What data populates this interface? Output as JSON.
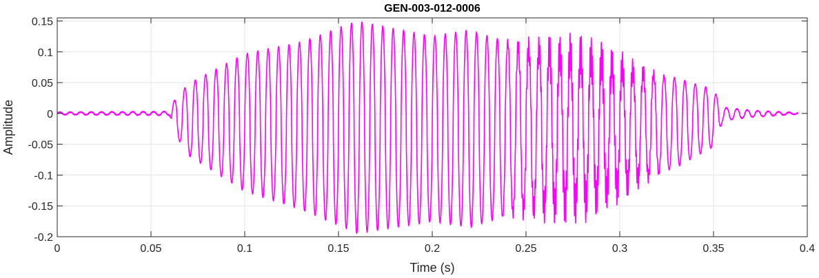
{
  "chart_data": {
    "type": "line",
    "title": "GEN-003-012-0006",
    "xlabel": "Time (s)",
    "ylabel": "Amplitude",
    "xlim": [
      0,
      0.4
    ],
    "ylim": [
      -0.2,
      0.155
    ],
    "xticks": [
      0,
      0.05,
      0.1,
      0.15,
      0.2,
      0.25,
      0.3,
      0.35,
      0.4
    ],
    "xtick_labels": [
      "0",
      "0.05",
      "0.1",
      "0.15",
      "0.2",
      "0.25",
      "0.3",
      "0.35",
      "0.4"
    ],
    "yticks": [
      -0.2,
      -0.15,
      -0.1,
      -0.05,
      0,
      0.05,
      0.1,
      0.15
    ],
    "ytick_labels": [
      "-0.2",
      "-0.15",
      "-0.1",
      "-0.05",
      "0",
      "0.05",
      "0.1",
      "0.15"
    ],
    "grid": true,
    "series": [
      {
        "color": "#ff00ff",
        "duration": 0.395,
        "fundamental_hz": 180,
        "envelope": {
          "time": [
            0,
            0.06,
            0.062,
            0.07,
            0.1,
            0.13,
            0.16,
            0.2,
            0.22,
            0.25,
            0.28,
            0.31,
            0.33,
            0.35,
            0.355,
            0.37,
            0.395
          ],
          "max": [
            0.002,
            0.003,
            0.02,
            0.05,
            0.1,
            0.12,
            0.155,
            0.13,
            0.14,
            0.11,
            0.1,
            0.07,
            0.06,
            0.04,
            0.01,
            0.005,
            0.001
          ],
          "min": [
            -0.002,
            -0.003,
            -0.03,
            -0.07,
            -0.13,
            -0.16,
            -0.2,
            -0.18,
            -0.19,
            -0.16,
            -0.15,
            -0.11,
            -0.09,
            -0.055,
            -0.012,
            -0.006,
            -0.001
          ]
        },
        "hf_burst": {
          "start": 0.235,
          "end": 0.325,
          "amplitude": 0.035,
          "freq_hz": 1500
        }
      }
    ]
  }
}
